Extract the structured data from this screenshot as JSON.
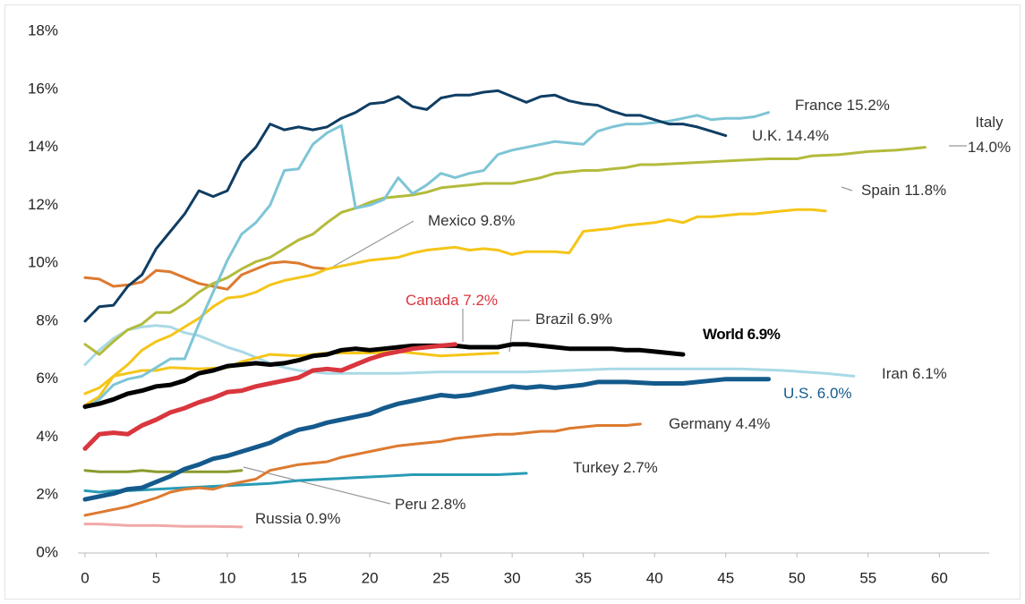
{
  "chart_data": {
    "type": "line",
    "xlim": [
      -0.5,
      63.5
    ],
    "ylim": [
      0,
      18
    ],
    "xticks": [
      0,
      5,
      10,
      15,
      20,
      25,
      30,
      35,
      40,
      45,
      50,
      55,
      60
    ],
    "yticks": [
      {
        "value": 0,
        "label": "0%"
      },
      {
        "value": 2,
        "label": "2%"
      },
      {
        "value": 4,
        "label": "4%"
      },
      {
        "value": 6,
        "label": "6%"
      },
      {
        "value": 8,
        "label": "8%"
      },
      {
        "value": 10,
        "label": "10%"
      },
      {
        "value": 12,
        "label": "12%"
      },
      {
        "value": 14,
        "label": "14%"
      },
      {
        "value": 16,
        "label": "16%"
      },
      {
        "value": 18,
        "label": "18%"
      }
    ],
    "series": [
      {
        "name": "U.K. 14.4%",
        "color": "#0f3d63",
        "x": [
          0,
          1,
          2,
          3,
          4,
          5,
          6,
          7,
          8,
          9,
          10,
          11,
          12,
          13,
          14,
          15,
          16,
          17,
          18,
          19,
          20,
          21,
          22,
          23,
          24,
          25,
          26,
          27,
          28,
          29,
          30,
          31,
          32,
          33,
          34,
          35,
          36,
          37,
          38,
          39,
          40,
          41,
          42,
          43,
          44,
          45
        ],
        "values": [
          8.0,
          8.5,
          8.55,
          9.2,
          9.6,
          10.5,
          11.1,
          11.7,
          12.5,
          12.3,
          12.5,
          13.5,
          14.0,
          14.8,
          14.6,
          14.7,
          14.6,
          14.7,
          15.0,
          15.2,
          15.5,
          15.55,
          15.75,
          15.4,
          15.3,
          15.7,
          15.8,
          15.8,
          15.9,
          15.95,
          15.75,
          15.55,
          15.75,
          15.8,
          15.6,
          15.5,
          15.45,
          15.25,
          15.1,
          15.1,
          14.95,
          14.8,
          14.8,
          14.7,
          14.55,
          14.4
        ]
      },
      {
        "name": "France 15.2%",
        "color": "#7ec5d6",
        "x": [
          0,
          1,
          2,
          3,
          4,
          5,
          6,
          7,
          8,
          9,
          10,
          11,
          12,
          13,
          14,
          15,
          16,
          17,
          18,
          19,
          20,
          21,
          22,
          23,
          24,
          25,
          26,
          27,
          28,
          29,
          30,
          31,
          32,
          33,
          34,
          35,
          36,
          37,
          38,
          39,
          40,
          41,
          42,
          43,
          44,
          45,
          46,
          47,
          48
        ],
        "values": [
          5.0,
          5.3,
          5.8,
          6.0,
          6.1,
          6.4,
          6.7,
          6.7,
          7.9,
          9.0,
          10.1,
          11.0,
          11.4,
          12.0,
          13.2,
          13.25,
          14.1,
          14.5,
          14.75,
          11.9,
          12.0,
          12.2,
          12.95,
          12.4,
          12.7,
          13.1,
          12.95,
          13.1,
          13.2,
          13.75,
          13.9,
          14.0,
          14.1,
          14.2,
          14.15,
          14.1,
          14.55,
          14.7,
          14.8,
          14.8,
          14.85,
          14.9,
          15.0,
          15.1,
          14.95,
          15.0,
          15.0,
          15.05,
          15.2
        ]
      },
      {
        "name": "Italy 14.0%",
        "color": "#b3bb3c",
        "x": [
          0,
          1,
          2,
          3,
          4,
          5,
          6,
          7,
          8,
          9,
          10,
          11,
          12,
          13,
          14,
          15,
          16,
          17,
          18,
          19,
          20,
          21,
          22,
          23,
          24,
          25,
          26,
          27,
          28,
          29,
          30,
          31,
          32,
          33,
          34,
          35,
          36,
          37,
          38,
          39,
          40,
          42,
          44,
          46,
          48,
          50,
          51,
          53,
          55,
          57,
          59
        ],
        "values": [
          7.2,
          6.85,
          7.3,
          7.7,
          7.9,
          8.3,
          8.3,
          8.6,
          9.0,
          9.3,
          9.5,
          9.8,
          10.05,
          10.2,
          10.5,
          10.8,
          11.0,
          11.4,
          11.75,
          11.9,
          12.1,
          12.25,
          12.3,
          12.35,
          12.45,
          12.6,
          12.65,
          12.7,
          12.75,
          12.75,
          12.75,
          12.85,
          12.95,
          13.1,
          13.15,
          13.2,
          13.2,
          13.25,
          13.3,
          13.4,
          13.4,
          13.45,
          13.5,
          13.55,
          13.6,
          13.6,
          13.7,
          13.75,
          13.85,
          13.9,
          14.0
        ]
      },
      {
        "name": "Spain 11.8%",
        "color": "#f5c518",
        "x": [
          0,
          1,
          2,
          3,
          4,
          5,
          6,
          7,
          8,
          9,
          10,
          11,
          12,
          13,
          14,
          15,
          16,
          17,
          18,
          19,
          20,
          21,
          22,
          23,
          24,
          25,
          26,
          27,
          28,
          29,
          30,
          31,
          32,
          33,
          34,
          35,
          36,
          37,
          38,
          39,
          40,
          41,
          42,
          43,
          44,
          45,
          46,
          47,
          48,
          49,
          50,
          51,
          52
        ],
        "values": [
          5.1,
          5.4,
          6.1,
          6.5,
          7.0,
          7.3,
          7.5,
          7.8,
          8.1,
          8.5,
          8.8,
          8.85,
          9.0,
          9.25,
          9.4,
          9.5,
          9.6,
          9.8,
          9.9,
          10.0,
          10.1,
          10.15,
          10.2,
          10.35,
          10.45,
          10.5,
          10.55,
          10.45,
          10.5,
          10.45,
          10.3,
          10.4,
          10.4,
          10.4,
          10.35,
          11.1,
          11.15,
          11.2,
          11.3,
          11.35,
          11.4,
          11.5,
          11.4,
          11.6,
          11.6,
          11.65,
          11.7,
          11.7,
          11.75,
          11.8,
          11.85,
          11.85,
          11.8
        ]
      },
      {
        "name": "Mexico 9.8%",
        "color": "#dd7a30",
        "x": [
          0,
          1,
          2,
          3,
          4,
          5,
          6,
          7,
          8,
          9,
          10,
          11,
          12,
          13,
          14,
          15,
          16,
          17
        ],
        "values": [
          9.5,
          9.45,
          9.2,
          9.25,
          9.35,
          9.75,
          9.7,
          9.5,
          9.3,
          9.2,
          9.1,
          9.6,
          9.8,
          10.0,
          10.05,
          10.0,
          9.85,
          9.8
        ]
      },
      {
        "name": "Brazil 6.9%",
        "color": "#f5c518",
        "x": [
          0,
          1,
          2,
          3,
          4,
          5,
          6,
          8,
          10,
          11,
          13,
          15,
          17,
          20,
          22,
          24,
          25,
          27,
          29
        ],
        "values": [
          5.5,
          5.7,
          6.1,
          6.2,
          6.3,
          6.3,
          6.4,
          6.35,
          6.4,
          6.6,
          6.85,
          6.8,
          6.9,
          6.9,
          6.95,
          6.85,
          6.8,
          6.85,
          6.9
        ]
      },
      {
        "name": "World 6.9%",
        "color": "#000000",
        "x": [
          0,
          1,
          2,
          3,
          4,
          5,
          6,
          7,
          8,
          9,
          10,
          11,
          12,
          13,
          14,
          15,
          16,
          17,
          18,
          19,
          20,
          21,
          22,
          23,
          24,
          25,
          26,
          27,
          28,
          29,
          30,
          31,
          32,
          33,
          34,
          35,
          36,
          37,
          38,
          39,
          40,
          41,
          42
        ],
        "values": [
          5.05,
          5.15,
          5.3,
          5.5,
          5.6,
          5.75,
          5.8,
          5.95,
          6.2,
          6.3,
          6.45,
          6.5,
          6.55,
          6.5,
          6.55,
          6.65,
          6.8,
          6.85,
          7.0,
          7.05,
          7.0,
          7.05,
          7.1,
          7.15,
          7.15,
          7.15,
          7.15,
          7.1,
          7.1,
          7.1,
          7.2,
          7.2,
          7.15,
          7.1,
          7.05,
          7.05,
          7.05,
          7.05,
          7.0,
          7.0,
          6.95,
          6.9,
          6.85
        ]
      },
      {
        "name": "Canada 7.2%",
        "color": "#d9363e",
        "x": [
          0,
          1,
          2,
          3,
          4,
          5,
          6,
          7,
          8,
          9,
          10,
          11,
          12,
          13,
          14,
          15,
          16,
          17,
          18,
          19,
          20,
          21,
          22,
          23,
          24,
          25,
          26
        ],
        "values": [
          3.6,
          4.1,
          4.15,
          4.1,
          4.4,
          4.6,
          4.85,
          5.0,
          5.2,
          5.35,
          5.55,
          5.6,
          5.75,
          5.85,
          5.95,
          6.05,
          6.3,
          6.35,
          6.3,
          6.5,
          6.7,
          6.85,
          6.95,
          7.05,
          7.1,
          7.15,
          7.2
        ]
      },
      {
        "name": "Iran 6.1%",
        "color": "#a9d9e6",
        "x": [
          0,
          1,
          2,
          3,
          4,
          5,
          6,
          7,
          8,
          9,
          10,
          11,
          12,
          13,
          14,
          15,
          16,
          17,
          18,
          20,
          22,
          25,
          28,
          31,
          34,
          37,
          40,
          43,
          46,
          49,
          52,
          54
        ],
        "values": [
          6.5,
          7.0,
          7.4,
          7.7,
          7.8,
          7.85,
          7.8,
          7.6,
          7.5,
          7.3,
          7.1,
          6.95,
          6.75,
          6.55,
          6.4,
          6.3,
          6.25,
          6.2,
          6.2,
          6.2,
          6.2,
          6.25,
          6.25,
          6.25,
          6.3,
          6.35,
          6.35,
          6.35,
          6.35,
          6.3,
          6.2,
          6.1
        ]
      },
      {
        "name": "U.S. 6.0%",
        "color": "#145a8c",
        "x": [
          0,
          1,
          2,
          3,
          4,
          5,
          6,
          7,
          8,
          9,
          10,
          11,
          12,
          13,
          14,
          15,
          16,
          17,
          18,
          19,
          20,
          21,
          22,
          23,
          24,
          25,
          26,
          27,
          28,
          29,
          30,
          31,
          32,
          33,
          34,
          35,
          36,
          37,
          38,
          40,
          42,
          44,
          45,
          47,
          48
        ],
        "values": [
          1.85,
          1.95,
          2.05,
          2.2,
          2.25,
          2.45,
          2.65,
          2.9,
          3.05,
          3.25,
          3.35,
          3.5,
          3.65,
          3.8,
          4.05,
          4.25,
          4.35,
          4.5,
          4.6,
          4.7,
          4.8,
          5.0,
          5.15,
          5.25,
          5.35,
          5.45,
          5.4,
          5.45,
          5.55,
          5.65,
          5.75,
          5.7,
          5.75,
          5.7,
          5.75,
          5.8,
          5.9,
          5.9,
          5.9,
          5.85,
          5.85,
          5.95,
          6.0,
          6.0,
          6.0
        ]
      },
      {
        "name": "Germany 4.4%",
        "color": "#dd7a30",
        "x": [
          0,
          1,
          2,
          3,
          4,
          5,
          6,
          7,
          8,
          9,
          10,
          11,
          12,
          13,
          14,
          15,
          16,
          17,
          18,
          19,
          20,
          21,
          22,
          23,
          24,
          25,
          26,
          27,
          28,
          29,
          30,
          31,
          32,
          33,
          34,
          35,
          36,
          37,
          38,
          39
        ],
        "values": [
          1.3,
          1.4,
          1.5,
          1.6,
          1.75,
          1.9,
          2.1,
          2.2,
          2.25,
          2.2,
          2.35,
          2.45,
          2.55,
          2.85,
          2.95,
          3.05,
          3.1,
          3.15,
          3.3,
          3.4,
          3.5,
          3.6,
          3.7,
          3.75,
          3.8,
          3.85,
          3.95,
          4.0,
          4.05,
          4.1,
          4.1,
          4.15,
          4.2,
          4.2,
          4.3,
          4.35,
          4.4,
          4.4,
          4.4,
          4.45
        ]
      },
      {
        "name": "Turkey 2.7%",
        "color": "#2a9bb5",
        "x": [
          0,
          1,
          2,
          3,
          5,
          7,
          9,
          11,
          13,
          15,
          17,
          19,
          21,
          23,
          25,
          27,
          29,
          31
        ],
        "values": [
          2.15,
          2.1,
          2.15,
          2.15,
          2.2,
          2.25,
          2.3,
          2.35,
          2.4,
          2.5,
          2.55,
          2.6,
          2.65,
          2.7,
          2.7,
          2.7,
          2.7,
          2.75
        ]
      },
      {
        "name": "Peru 2.8%",
        "color": "#8a9a2e",
        "x": [
          0,
          1,
          2,
          3,
          4,
          5,
          6,
          7,
          8,
          9,
          10,
          11
        ],
        "values": [
          2.85,
          2.8,
          2.8,
          2.8,
          2.85,
          2.8,
          2.8,
          2.8,
          2.8,
          2.8,
          2.8,
          2.85
        ]
      },
      {
        "name": "Russia 0.9%",
        "color": "#f0a8a8",
        "x": [
          0,
          1,
          3,
          5,
          7,
          9,
          11
        ],
        "values": [
          1.0,
          1.0,
          0.95,
          0.95,
          0.92,
          0.92,
          0.9
        ]
      }
    ]
  }
}
